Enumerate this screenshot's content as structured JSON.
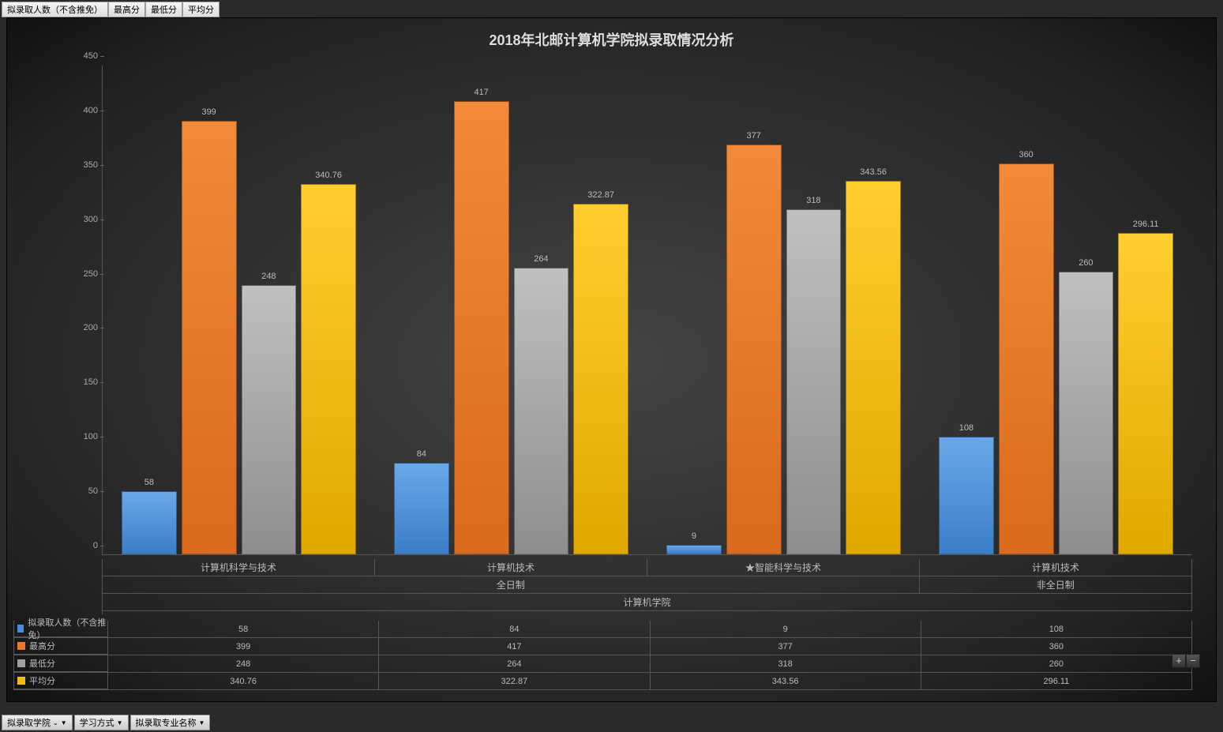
{
  "topButtons": [
    "拟录取人数（不含推免）",
    "最高分",
    "最低分",
    "平均分"
  ],
  "title": "2018年北邮计算机学院拟录取情况分析",
  "ymax": 450,
  "ytick_step": 50,
  "yticks": [
    0,
    50,
    100,
    150,
    200,
    250,
    300,
    350,
    400,
    450
  ],
  "series": [
    {
      "name": "拟录取人数（不含推免）",
      "color": "#4a8bd8"
    },
    {
      "name": "最高分",
      "color": "#e8792e"
    },
    {
      "name": "最低分",
      "color": "#a0a0a0"
    },
    {
      "name": "平均分",
      "color": "#f2bb13"
    }
  ],
  "groups": [
    {
      "major": "计算机科学与技术",
      "mode": "全日制",
      "values": [
        58,
        399,
        248,
        340.76
      ]
    },
    {
      "major": "计算机技术",
      "mode": "全日制",
      "values": [
        84,
        417,
        264,
        322.87
      ]
    },
    {
      "major": "★智能科学与技术",
      "mode": "全日制",
      "values": [
        9,
        377,
        318,
        343.56
      ]
    },
    {
      "major": "计算机技术",
      "mode": "非全日制",
      "values": [
        108,
        360,
        260,
        296.11
      ]
    }
  ],
  "axis2_labels": [
    "全日制",
    "非全日制"
  ],
  "axis2_spans": [
    3,
    1
  ],
  "axis3_label": "计算机学院",
  "bottomFilters": [
    "拟录取学院",
    "学习方式",
    "拟录取专业名称"
  ],
  "zoomButtons": [
    "+",
    "−"
  ],
  "background_color": "#2a2a2a",
  "grid_color": "#555555",
  "title_fontsize": 18,
  "label_fontsize": 11,
  "bar_gap": 6
}
